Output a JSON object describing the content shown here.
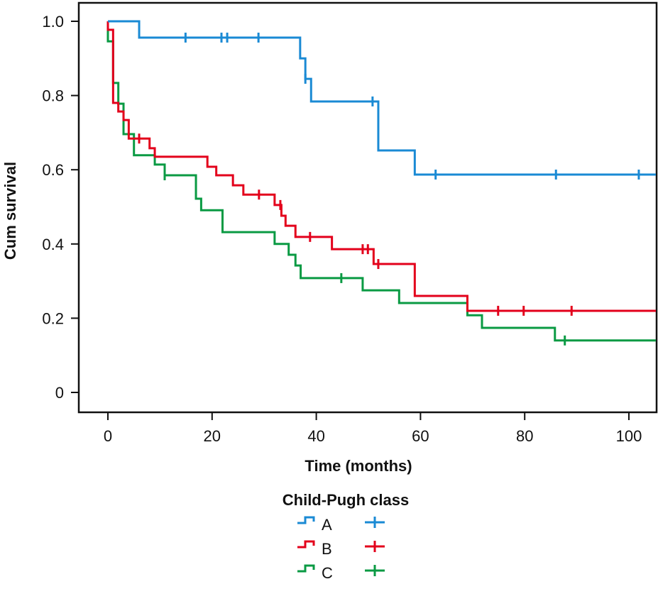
{
  "chart_data": {
    "type": "line",
    "subtype": "kaplan-meier-step",
    "title": "",
    "xlabel": "Time (months)",
    "ylabel": "Cum survival",
    "xlim": [
      -5.5,
      105.3
    ],
    "ylim": [
      -0.055,
      1.045
    ],
    "xticks": [
      0,
      20,
      40,
      60,
      80,
      100
    ],
    "xtick_labels": [
      "0",
      "20",
      "40",
      "60",
      "80",
      "100"
    ],
    "yticks": [
      0,
      0.2,
      0.4,
      0.6,
      0.8,
      1.0
    ],
    "ytick_labels": [
      "0",
      "0.2",
      "0.4",
      "0.6",
      "0.8",
      "1.0"
    ],
    "grid": false,
    "legend": {
      "title": "Child-Pugh class",
      "placement": "bottom-center",
      "entries": [
        "A",
        "B",
        "C"
      ]
    },
    "series": [
      {
        "name": "A",
        "color": "#1a8ad4",
        "steps": [
          [
            0,
            1.0
          ],
          [
            6,
            0.956
          ],
          [
            36.9,
            0.9
          ],
          [
            37.9,
            0.845
          ],
          [
            39,
            0.784
          ],
          [
            51.9,
            0.652
          ],
          [
            58.9,
            0.587
          ]
        ],
        "end_x": 105.3,
        "censored": [
          14.9,
          21.8,
          22.9,
          28.9,
          37.9,
          50.8,
          62.9,
          86,
          101.9
        ]
      },
      {
        "name": "B",
        "color": "#e3001b",
        "steps": [
          [
            0,
            1.0
          ],
          [
            0,
            0.977
          ],
          [
            1,
            0.78
          ],
          [
            2,
            0.757
          ],
          [
            3,
            0.734
          ],
          [
            4,
            0.684
          ],
          [
            8,
            0.658
          ],
          [
            9,
            0.635
          ],
          [
            19.1,
            0.608
          ],
          [
            20.8,
            0.585
          ],
          [
            24,
            0.558
          ],
          [
            26,
            0.533
          ],
          [
            32,
            0.505
          ],
          [
            33.3,
            0.476
          ],
          [
            34.1,
            0.449
          ],
          [
            36,
            0.419
          ],
          [
            43,
            0.386
          ],
          [
            51,
            0.346
          ],
          [
            58.9,
            0.26
          ],
          [
            69,
            0.22
          ]
        ],
        "end_x": 105.3,
        "censored": [
          6,
          29,
          33.1,
          38.8,
          48.9,
          49.9,
          51.9,
          74.9,
          79.8,
          89
        ]
      },
      {
        "name": "C",
        "color": "#0a9a43",
        "steps": [
          [
            0,
            1.0
          ],
          [
            0,
            0.946
          ],
          [
            1,
            0.834
          ],
          [
            2,
            0.778
          ],
          [
            3,
            0.696
          ],
          [
            5,
            0.639
          ],
          [
            9,
            0.614
          ],
          [
            10.9,
            0.585
          ],
          [
            16.9,
            0.522
          ],
          [
            17.9,
            0.491
          ],
          [
            22,
            0.432
          ],
          [
            32,
            0.4
          ],
          [
            34.7,
            0.371
          ],
          [
            36,
            0.342
          ],
          [
            37,
            0.308
          ],
          [
            48.9,
            0.275
          ],
          [
            55.9,
            0.241
          ],
          [
            69,
            0.208
          ],
          [
            71.8,
            0.174
          ],
          [
            85.8,
            0.14
          ]
        ],
        "end_x": 105.3,
        "censored": [
          10.9,
          44.8,
          87.7
        ]
      }
    ]
  }
}
